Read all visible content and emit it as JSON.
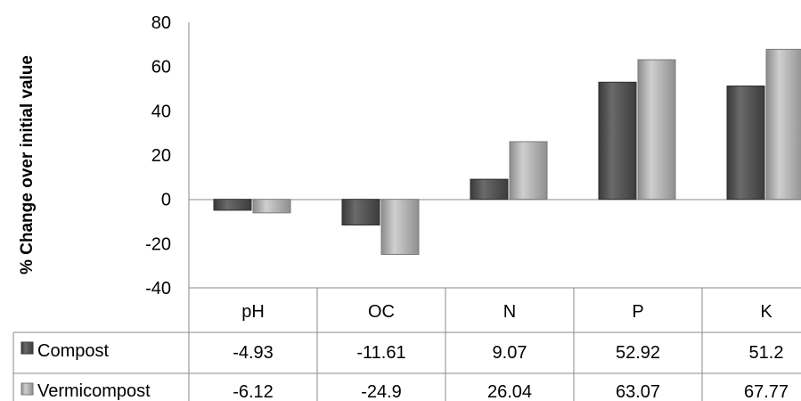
{
  "chart_data": {
    "type": "bar",
    "ylabel": "% Change over initial value",
    "xlabel": "",
    "ylim": [
      -40,
      80
    ],
    "yticks": [
      80,
      60,
      40,
      20,
      0,
      -20,
      -40
    ],
    "categories": [
      "pH",
      "OC",
      "N",
      "P",
      "K"
    ],
    "series": [
      {
        "name": "Compost",
        "values": [
          -4.93,
          -11.61,
          9.07,
          52.92,
          51.2
        ],
        "color": "#4a4a4a"
      },
      {
        "name": "Vermicompost",
        "values": [
          -6.12,
          -24.9,
          26.04,
          63.07,
          67.77
        ],
        "color": "#a9a9a9"
      }
    ],
    "table_values": [
      [
        "-4.93",
        "-11.61",
        "9.07",
        "52.92",
        "51.2"
      ],
      [
        "-6.12",
        "-24.9",
        "26.04",
        "63.07",
        "67.77"
      ]
    ],
    "grid": false,
    "legend": "data-table"
  }
}
